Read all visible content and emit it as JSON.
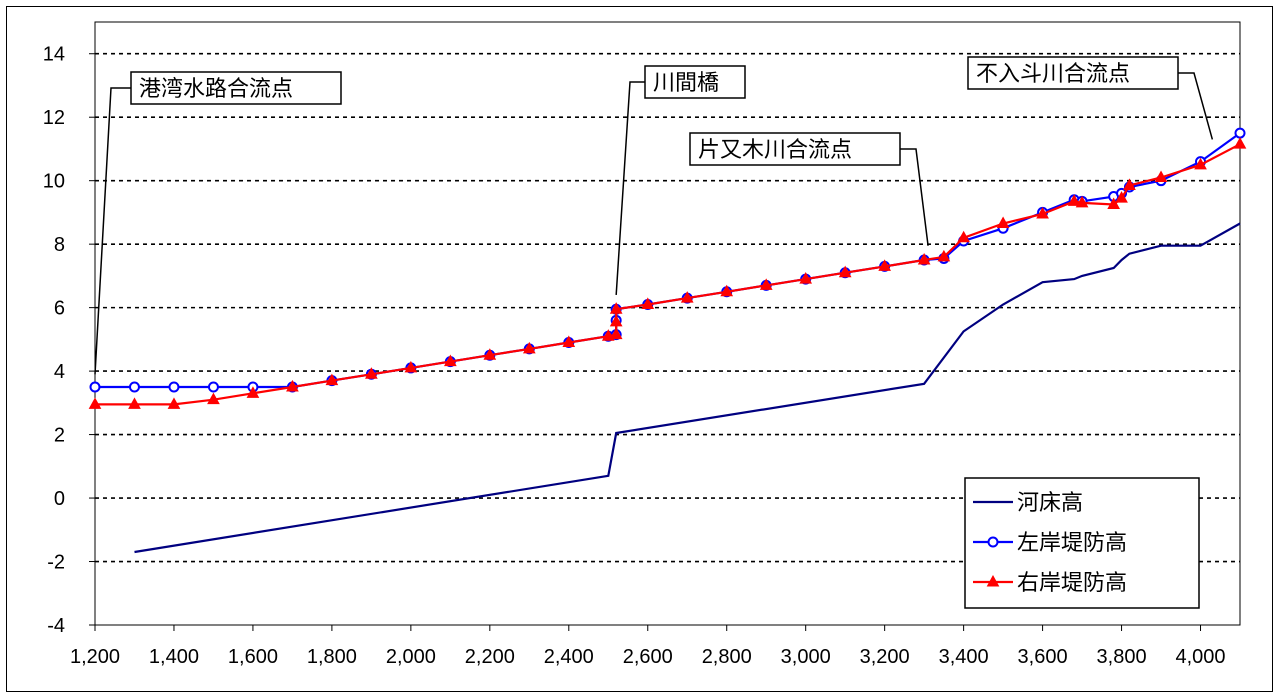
{
  "chart_data": {
    "type": "line",
    "title": "",
    "xlabel": "",
    "ylabel": "",
    "xlim": [
      1200,
      4100
    ],
    "ylim": [
      -4,
      15
    ],
    "x_ticks": [
      "1,200",
      "1,400",
      "1,600",
      "1,800",
      "2,000",
      "2,200",
      "2,400",
      "2,600",
      "2,800",
      "3,000",
      "3,200",
      "3,400",
      "3,600",
      "3,800",
      "4,000"
    ],
    "x_tick_values": [
      1200,
      1400,
      1600,
      1800,
      2000,
      2200,
      2400,
      2600,
      2800,
      3000,
      3200,
      3400,
      3600,
      3800,
      4000
    ],
    "y_ticks": [
      "-4",
      "-2",
      "0",
      "2",
      "4",
      "6",
      "8",
      "10",
      "12",
      "14"
    ],
    "y_tick_values": [
      -4,
      -2,
      0,
      2,
      4,
      6,
      8,
      10,
      12,
      14
    ],
    "grid": "horizontal-dotted",
    "legend_position": "bottom-right",
    "series": [
      {
        "name": "河床高",
        "color": "#000080",
        "marker": "none",
        "x": [
          1300,
          2500,
          2520,
          3300,
          3400,
          3500,
          3600,
          3680,
          3700,
          3780,
          3800,
          3820,
          3900,
          4000,
          4100
        ],
        "y": [
          -1.7,
          0.7,
          2.05,
          3.6,
          5.25,
          6.1,
          6.8,
          6.9,
          7.0,
          7.25,
          7.5,
          7.7,
          7.95,
          7.95,
          8.65
        ]
      },
      {
        "name": "左岸堤防高",
        "color": "#0000ff",
        "marker": "circle",
        "x": [
          1200,
          1300,
          1400,
          1500,
          1600,
          1700,
          1800,
          1900,
          2000,
          2100,
          2200,
          2300,
          2400,
          2500,
          2520,
          2520,
          2520,
          2600,
          2700,
          2800,
          2900,
          3000,
          3100,
          3200,
          3300,
          3350,
          3400,
          3500,
          3600,
          3680,
          3700,
          3780,
          3800,
          3820,
          3900,
          4000,
          4100
        ],
        "y": [
          3.5,
          3.5,
          3.5,
          3.5,
          3.5,
          3.5,
          3.7,
          3.9,
          4.1,
          4.3,
          4.5,
          4.7,
          4.9,
          5.1,
          5.15,
          5.6,
          5.95,
          6.1,
          6.3,
          6.5,
          6.7,
          6.9,
          7.1,
          7.3,
          7.5,
          7.55,
          8.1,
          8.5,
          9.0,
          9.4,
          9.35,
          9.5,
          9.6,
          9.8,
          10.0,
          10.6,
          11.5
        ]
      },
      {
        "name": "右岸堤防高",
        "color": "#ff0000",
        "marker": "triangle",
        "x": [
          1200,
          1300,
          1400,
          1500,
          1600,
          1700,
          1800,
          1900,
          2000,
          2100,
          2200,
          2300,
          2400,
          2500,
          2520,
          2520,
          2520,
          2600,
          2700,
          2800,
          2900,
          3000,
          3100,
          3200,
          3300,
          3350,
          3400,
          3500,
          3600,
          3680,
          3700,
          3780,
          3800,
          3820,
          3900,
          4000,
          4100
        ],
        "y": [
          2.95,
          2.95,
          2.95,
          3.1,
          3.3,
          3.5,
          3.7,
          3.9,
          4.1,
          4.3,
          4.5,
          4.7,
          4.9,
          5.1,
          5.15,
          5.55,
          5.95,
          6.1,
          6.3,
          6.5,
          6.7,
          6.9,
          7.1,
          7.3,
          7.5,
          7.6,
          8.2,
          8.65,
          8.95,
          9.35,
          9.3,
          9.25,
          9.45,
          9.85,
          10.1,
          10.5,
          11.15
        ]
      }
    ],
    "annotations": [
      {
        "text": "港湾水路合流点",
        "point_x": 1200,
        "point_y": 3.9
      },
      {
        "text": "川間橋",
        "point_x": 2520,
        "point_y": 6.4
      },
      {
        "text": "片又木川合流点",
        "point_x": 3310,
        "point_y": 7.95
      },
      {
        "text": "不入斗川合流点",
        "point_x": 4030,
        "point_y": 11.3
      }
    ]
  }
}
